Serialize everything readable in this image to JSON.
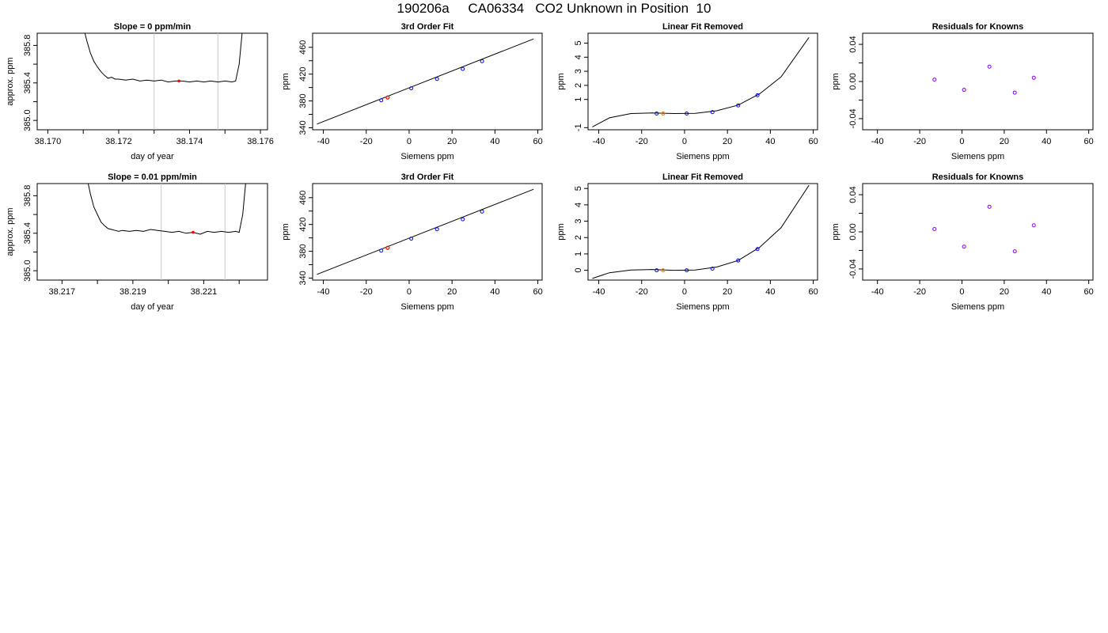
{
  "title": "190206a     CA06334   CO2 Unknown in Position  10",
  "colors": {
    "axis": "#000000",
    "line": "#000000",
    "vline": "#c8c8c8",
    "known": "#0000ff",
    "unknown_fit": "#ff0000",
    "unknown_linear": "#ff8000",
    "residual": "#8000ff"
  },
  "chart_data": [
    {
      "type": "line",
      "title": "Slope =  0  ppm/min",
      "xlabel": "day of year",
      "ylabel": "approx. ppm",
      "xlim": [
        38.1697,
        38.1762
      ],
      "ylim": [
        384.9,
        385.93
      ],
      "xticks": [
        38.17,
        38.171,
        38.172,
        38.173,
        38.174,
        38.175,
        38.176
      ],
      "xtick_labels": [
        "38.170",
        "",
        "38.172",
        "",
        "38.174",
        "",
        "38.176"
      ],
      "yticks": [
        385.0,
        385.2,
        385.4,
        385.6,
        385.8
      ],
      "ytick_labels": [
        "385.0",
        "",
        "385.4",
        "",
        "385.8"
      ],
      "vlines": [
        38.173,
        38.1748
      ],
      "x": [
        38.171,
        38.1711,
        38.1712,
        38.1713,
        38.1714,
        38.1715,
        38.1716,
        38.1717,
        38.1718,
        38.1719,
        38.172,
        38.1722,
        38.1724,
        38.1726,
        38.1728,
        38.173,
        38.1732,
        38.1734,
        38.1736,
        38.1738,
        38.174,
        38.1742,
        38.1744,
        38.1746,
        38.1748,
        38.175,
        38.1752,
        38.1753,
        38.1754,
        38.1755
      ],
      "y": [
        386.0,
        385.85,
        385.72,
        385.63,
        385.57,
        385.52,
        385.48,
        385.45,
        385.46,
        385.44,
        385.44,
        385.43,
        385.44,
        385.42,
        385.43,
        385.42,
        385.43,
        385.41,
        385.42,
        385.42,
        385.41,
        385.42,
        385.41,
        385.42,
        385.41,
        385.42,
        385.41,
        385.42,
        385.6,
        386.0
      ],
      "marker": {
        "x": 38.1737,
        "y": 385.42
      }
    },
    {
      "type": "scatter",
      "title": "3rd Order Fit",
      "xlabel": "Siemens ppm",
      "ylabel": "ppm",
      "xlim": [
        -45,
        62
      ],
      "ylim": [
        337,
        481
      ],
      "xticks": [
        -40,
        -20,
        0,
        20,
        40,
        60
      ],
      "yticks": [
        340,
        360,
        380,
        400,
        420,
        440,
        460
      ],
      "ytick_labels": [
        "340",
        "",
        "380",
        "",
        "420",
        "",
        "460"
      ],
      "curve": {
        "x": [
          -43,
          58
        ],
        "y": [
          345.5,
          472.5
        ]
      },
      "known": {
        "x": [
          -13,
          1,
          13,
          25,
          34
        ],
        "y": [
          381,
          398.8,
          412.9,
          427.7,
          439.2
        ]
      },
      "unknown": {
        "x": [
          -10
        ],
        "y": [
          385.2
        ]
      }
    },
    {
      "type": "scatter",
      "title": "Linear Fit Removed",
      "xlabel": "Siemens ppm",
      "ylabel": "ppm",
      "xlim": [
        -45,
        62
      ],
      "ylim": [
        -1.15,
        5.7
      ],
      "xticks": [
        -40,
        -20,
        0,
        20,
        40,
        60
      ],
      "yticks": [
        -1,
        1,
        2,
        3,
        4,
        5
      ],
      "curve": {
        "x": [
          -43,
          -35,
          -25,
          -15,
          -5,
          5,
          15,
          25,
          35,
          45,
          58
        ],
        "y": [
          -0.95,
          -0.3,
          0.0,
          0.04,
          0.0,
          0.02,
          0.2,
          0.6,
          1.4,
          2.6,
          5.4
        ]
      },
      "known": {
        "x": [
          -13,
          1,
          13,
          25,
          34
        ],
        "y": [
          0.0,
          0.0,
          0.1,
          0.58,
          1.3
        ]
      },
      "unknown": {
        "x": [
          -10
        ],
        "y": [
          0.0
        ]
      }
    },
    {
      "type": "scatter",
      "title": "Residuals for Knowns",
      "xlabel": "Siemens ppm",
      "ylabel": "ppm",
      "xlim": [
        -47,
        62
      ],
      "ylim": [
        -0.052,
        0.052
      ],
      "xticks": [
        -40,
        -20,
        0,
        20,
        40,
        60
      ],
      "yticks": [
        -0.04,
        -0.02,
        0.0,
        0.02,
        0.04
      ],
      "ytick_labels": [
        "-0.04",
        "",
        "0.00",
        "",
        "0.04"
      ],
      "points": {
        "x": [
          -13,
          1,
          13,
          25,
          34
        ],
        "y": [
          0.002,
          -0.009,
          0.016,
          -0.012,
          0.004
        ]
      }
    },
    {
      "type": "line",
      "title": "Slope =  0.01  ppm/min",
      "xlabel": "day of year",
      "ylabel": "approx. ppm",
      "xlim": [
        38.2163,
        38.2228
      ],
      "ylim": [
        384.9,
        385.93
      ],
      "xticks": [
        38.217,
        38.218,
        38.219,
        38.22,
        38.221,
        38.222
      ],
      "xtick_labels": [
        "38.217",
        "",
        "38.219",
        "",
        "38.221",
        ""
      ],
      "yticks": [
        385.0,
        385.2,
        385.4,
        385.6,
        385.8
      ],
      "ytick_labels": [
        "385.0",
        "",
        "385.4",
        "",
        "385.8"
      ],
      "vlines": [
        38.2198,
        38.2216
      ],
      "x": [
        38.2177,
        38.2178,
        38.2179,
        38.218,
        38.2181,
        38.2182,
        38.2183,
        38.2184,
        38.2185,
        38.2186,
        38.2187,
        38.2189,
        38.2191,
        38.2193,
        38.2195,
        38.2197,
        38.2199,
        38.2201,
        38.2203,
        38.2205,
        38.2207,
        38.2209,
        38.2211,
        38.2213,
        38.2215,
        38.2217,
        38.2219,
        38.222,
        38.2221,
        38.2222
      ],
      "y": [
        386.0,
        385.82,
        385.68,
        385.6,
        385.52,
        385.48,
        385.45,
        385.44,
        385.43,
        385.42,
        385.43,
        385.42,
        385.43,
        385.42,
        385.44,
        385.43,
        385.42,
        385.41,
        385.42,
        385.4,
        385.41,
        385.39,
        385.42,
        385.41,
        385.42,
        385.41,
        385.42,
        385.41,
        385.6,
        386.0
      ],
      "marker": {
        "x": 38.2207,
        "y": 385.41
      }
    },
    {
      "type": "scatter",
      "title": "3rd Order Fit",
      "xlabel": "Siemens ppm",
      "ylabel": "ppm",
      "xlim": [
        -45,
        62
      ],
      "ylim": [
        337,
        481
      ],
      "xticks": [
        -40,
        -20,
        0,
        20,
        40,
        60
      ],
      "yticks": [
        340,
        360,
        380,
        400,
        420,
        440,
        460
      ],
      "ytick_labels": [
        "340",
        "",
        "380",
        "",
        "420",
        "",
        "460"
      ],
      "curve": {
        "x": [
          -43,
          58
        ],
        "y": [
          345.5,
          472.5
        ]
      },
      "known": {
        "x": [
          -13,
          1,
          13,
          25,
          34
        ],
        "y": [
          381,
          398.8,
          412.9,
          427.7,
          439.2
        ]
      },
      "unknown": {
        "x": [
          -10
        ],
        "y": [
          385.2
        ]
      }
    },
    {
      "type": "scatter",
      "title": "Linear Fit Removed",
      "xlabel": "Siemens ppm",
      "ylabel": "ppm",
      "xlim": [
        -45,
        62
      ],
      "ylim": [
        -0.6,
        5.3
      ],
      "xticks": [
        -40,
        -20,
        0,
        20,
        40,
        60
      ],
      "yticks": [
        0,
        1,
        2,
        3,
        4,
        5
      ],
      "curve": {
        "x": [
          -43,
          -35,
          -25,
          -15,
          -5,
          5,
          15,
          25,
          35,
          45,
          58
        ],
        "y": [
          -0.5,
          -0.15,
          0.02,
          0.05,
          0.0,
          0.02,
          0.2,
          0.6,
          1.4,
          2.6,
          5.2
        ]
      },
      "known": {
        "x": [
          -13,
          1,
          13,
          25,
          34
        ],
        "y": [
          0.0,
          0.0,
          0.1,
          0.6,
          1.3
        ]
      },
      "unknown": {
        "x": [
          -10
        ],
        "y": [
          0.0
        ]
      }
    },
    {
      "type": "scatter",
      "title": "Residuals for Knowns",
      "xlabel": "Siemens ppm",
      "ylabel": "ppm",
      "xlim": [
        -47,
        62
      ],
      "ylim": [
        -0.052,
        0.052
      ],
      "xticks": [
        -40,
        -20,
        0,
        20,
        40,
        60
      ],
      "yticks": [
        -0.04,
        -0.02,
        0.0,
        0.02,
        0.04
      ],
      "ytick_labels": [
        "-0.04",
        "",
        "0.00",
        "",
        "0.04"
      ],
      "points": {
        "x": [
          -13,
          1,
          13,
          25,
          34
        ],
        "y": [
          0.003,
          -0.016,
          0.027,
          -0.021,
          0.007
        ]
      }
    }
  ]
}
